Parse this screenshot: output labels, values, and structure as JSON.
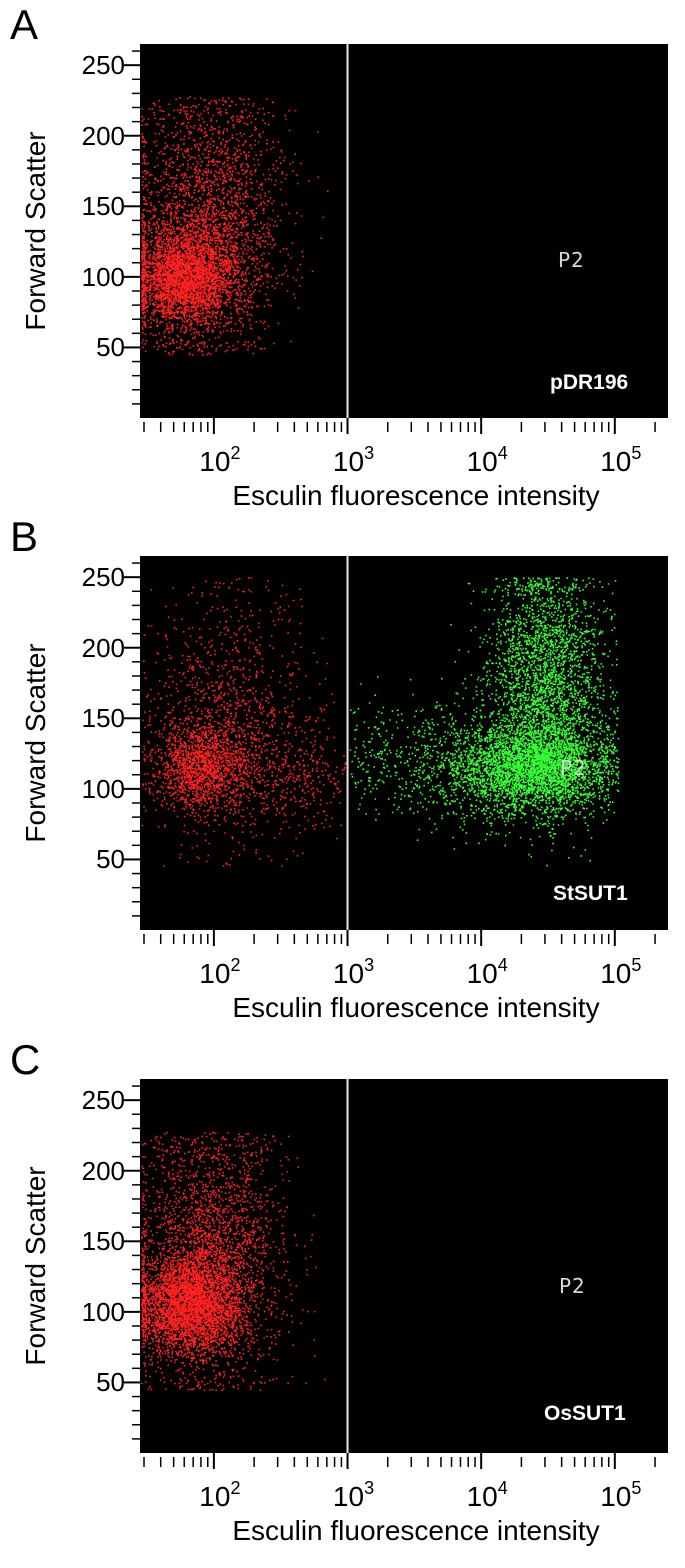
{
  "colors": {
    "background": "#000000",
    "outside_gate": "#ff2020",
    "inside_gate": "#33ff33",
    "gate_line": "#e8e8e8",
    "gate_label": "#d8d8d8",
    "sample_label": "#ffffff"
  },
  "chart_data": [
    {
      "type": "scatter",
      "panel_letter": "A",
      "sample_label": "pDR196",
      "gate_label": "P2",
      "gate_x": 1000,
      "xlabel": "Esculin fluorescence intensity",
      "ylabel": "Forward Scatter",
      "x_scale": "log",
      "xlim": [
        28,
        250000
      ],
      "ylim": [
        0,
        265
      ],
      "x_ticks": [
        {
          "base": "10",
          "exp": "2",
          "value": 100
        },
        {
          "base": "10",
          "exp": "3",
          "value": 1000
        },
        {
          "base": "10",
          "exp": "4",
          "value": 10000
        },
        {
          "base": "10",
          "exp": "5",
          "value": 100000
        }
      ],
      "y_ticks": [
        50,
        100,
        150,
        200,
        250
      ],
      "grid": false,
      "clusters": [
        {
          "population": "outside",
          "n": 3000,
          "center_x": 60,
          "center_y": 100,
          "spread_log_x": 0.2,
          "spread_y": 17
        },
        {
          "population": "outside",
          "n": 2400,
          "center_x": 90,
          "center_y": 140,
          "spread_log_x": 0.28,
          "spread_y": 45
        }
      ]
    },
    {
      "type": "scatter",
      "panel_letter": "B",
      "sample_label": "StSUT1",
      "gate_label": "P2",
      "gate_x": 1000,
      "xlabel": "Esculin fluorescence intensity",
      "ylabel": "Forward Scatter",
      "x_scale": "log",
      "xlim": [
        28,
        250000
      ],
      "ylim": [
        0,
        265
      ],
      "x_ticks": [
        {
          "base": "10",
          "exp": "2",
          "value": 100
        },
        {
          "base": "10",
          "exp": "3",
          "value": 1000
        },
        {
          "base": "10",
          "exp": "4",
          "value": 10000
        },
        {
          "base": "10",
          "exp": "5",
          "value": 100000
        }
      ],
      "y_ticks": [
        50,
        100,
        150,
        200,
        250
      ],
      "grid": false,
      "clusters": [
        {
          "population": "outside",
          "n": 1400,
          "center_x": 80,
          "center_y": 115,
          "spread_log_x": 0.17,
          "spread_y": 15
        },
        {
          "population": "outside",
          "n": 1100,
          "center_x": 130,
          "center_y": 150,
          "spread_log_x": 0.3,
          "spread_y": 45
        },
        {
          "population": "outside",
          "n": 300,
          "center_x": 400,
          "center_y": 110,
          "spread_log_x": 0.25,
          "spread_y": 20
        },
        {
          "population": "inside",
          "n": 3200,
          "center_x": 25000,
          "center_y": 115,
          "spread_log_x": 0.3,
          "spread_y": 16
        },
        {
          "population": "inside",
          "n": 2600,
          "center_x": 30000,
          "center_y": 175,
          "spread_log_x": 0.22,
          "spread_y": 40
        },
        {
          "population": "inside",
          "n": 700,
          "center_x": 6000,
          "center_y": 120,
          "spread_log_x": 0.45,
          "spread_y": 22
        }
      ]
    },
    {
      "type": "scatter",
      "panel_letter": "C",
      "sample_label": "OsSUT1",
      "gate_label": "P2",
      "gate_x": 1000,
      "xlabel": "Esculin fluorescence intensity",
      "ylabel": "Forward Scatter",
      "x_scale": "log",
      "xlim": [
        28,
        250000
      ],
      "ylim": [
        0,
        265
      ],
      "x_ticks": [
        {
          "base": "10",
          "exp": "2",
          "value": 100
        },
        {
          "base": "10",
          "exp": "3",
          "value": 1000
        },
        {
          "base": "10",
          "exp": "4",
          "value": 10000
        },
        {
          "base": "10",
          "exp": "5",
          "value": 100000
        }
      ],
      "y_ticks": [
        50,
        100,
        150,
        200,
        250
      ],
      "grid": false,
      "clusters": [
        {
          "population": "outside",
          "n": 3200,
          "center_x": 65,
          "center_y": 105,
          "spread_log_x": 0.2,
          "spread_y": 18
        },
        {
          "population": "outside",
          "n": 2400,
          "center_x": 95,
          "center_y": 140,
          "spread_log_x": 0.27,
          "spread_y": 45
        }
      ]
    }
  ]
}
